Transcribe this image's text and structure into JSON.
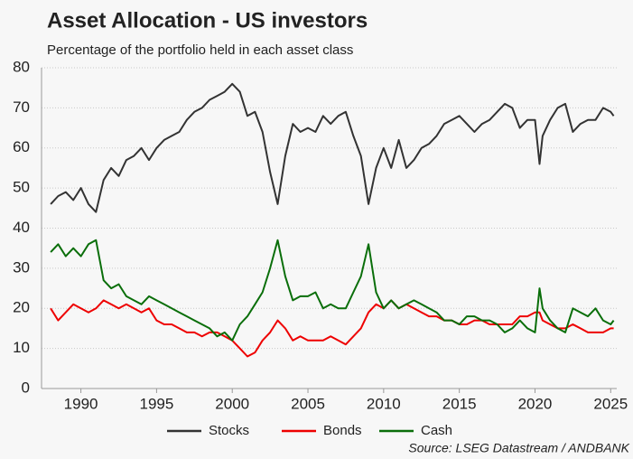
{
  "chart_data": {
    "type": "line",
    "title": "Asset Allocation - US investors",
    "subtitle": "Percentage of the portfolio held in each asset class",
    "source": "Source: LSEG Datastream / ANDBANK",
    "x": [
      1988,
      1988.5,
      1989,
      1989.5,
      1990,
      1990.5,
      1991,
      1991.5,
      1992,
      1992.5,
      1993,
      1993.5,
      1994,
      1994.5,
      1995,
      1995.5,
      1996,
      1996.5,
      1997,
      1997.5,
      1998,
      1998.5,
      1999,
      1999.5,
      2000,
      2000.5,
      2001,
      2001.5,
      2002,
      2002.5,
      2003,
      2003.5,
      2004,
      2004.5,
      2005,
      2005.5,
      2006,
      2006.5,
      2007,
      2007.5,
      2008,
      2008.5,
      2009,
      2009.5,
      2010,
      2010.5,
      2011,
      2011.5,
      2012,
      2012.5,
      2013,
      2013.5,
      2014,
      2014.5,
      2015,
      2015.5,
      2016,
      2016.5,
      2017,
      2017.5,
      2018,
      2018.5,
      2019,
      2019.5,
      2020,
      2020.3,
      2020.5,
      2021,
      2021.5,
      2022,
      2022.5,
      2023,
      2023.5,
      2024,
      2024.5,
      2025,
      2025.2
    ],
    "series": [
      {
        "name": "Stocks",
        "color": "#333333",
        "values": [
          46,
          48,
          49,
          47,
          50,
          46,
          44,
          52,
          55,
          53,
          57,
          58,
          60,
          57,
          60,
          62,
          63,
          64,
          67,
          69,
          70,
          72,
          73,
          74,
          76,
          74,
          68,
          69,
          64,
          54,
          46,
          58,
          66,
          64,
          65,
          64,
          68,
          66,
          68,
          69,
          63,
          58,
          46,
          55,
          60,
          55,
          62,
          55,
          57,
          60,
          61,
          63,
          66,
          67,
          68,
          66,
          64,
          66,
          67,
          69,
          71,
          70,
          65,
          67,
          67,
          56,
          63,
          67,
          70,
          71,
          64,
          66,
          67,
          67,
          70,
          69,
          68
        ]
      },
      {
        "name": "Bonds",
        "color": "#ee0000",
        "values": [
          20,
          17,
          19,
          21,
          20,
          19,
          20,
          22,
          21,
          20,
          21,
          20,
          19,
          20,
          17,
          16,
          16,
          15,
          14,
          14,
          13,
          14,
          14,
          13,
          12,
          10,
          8,
          9,
          12,
          14,
          17,
          15,
          12,
          13,
          12,
          12,
          12,
          13,
          12,
          11,
          13,
          15,
          19,
          21,
          20,
          22,
          20,
          21,
          20,
          19,
          18,
          18,
          17,
          17,
          16,
          16,
          17,
          17,
          16,
          16,
          16,
          16,
          18,
          18,
          19,
          19,
          17,
          16,
          15,
          15,
          16,
          15,
          14,
          14,
          14,
          15,
          15
        ]
      },
      {
        "name": "Cash",
        "color": "#0a6e0a",
        "values": [
          34,
          36,
          33,
          35,
          33,
          36,
          37,
          27,
          25,
          26,
          23,
          22,
          21,
          23,
          22,
          21,
          20,
          19,
          18,
          17,
          16,
          15,
          13,
          14,
          12,
          16,
          18,
          21,
          24,
          30,
          37,
          28,
          22,
          23,
          23,
          24,
          20,
          21,
          20,
          20,
          24,
          28,
          36,
          24,
          20,
          22,
          20,
          21,
          22,
          21,
          20,
          19,
          17,
          17,
          16,
          18,
          18,
          17,
          17,
          16,
          14,
          15,
          17,
          15,
          14,
          25,
          20,
          17,
          15,
          14,
          20,
          19,
          18,
          20,
          17,
          16,
          17
        ]
      }
    ],
    "xlim": [
      1987.4,
      2025.4
    ],
    "xticks": [
      1990,
      1995,
      2000,
      2005,
      2010,
      2015,
      2020,
      2025
    ],
    "ylim": [
      0,
      80
    ],
    "yticks": [
      0,
      10,
      20,
      30,
      40,
      50,
      60,
      70,
      80
    ],
    "grid": true,
    "legend": "bottom"
  }
}
